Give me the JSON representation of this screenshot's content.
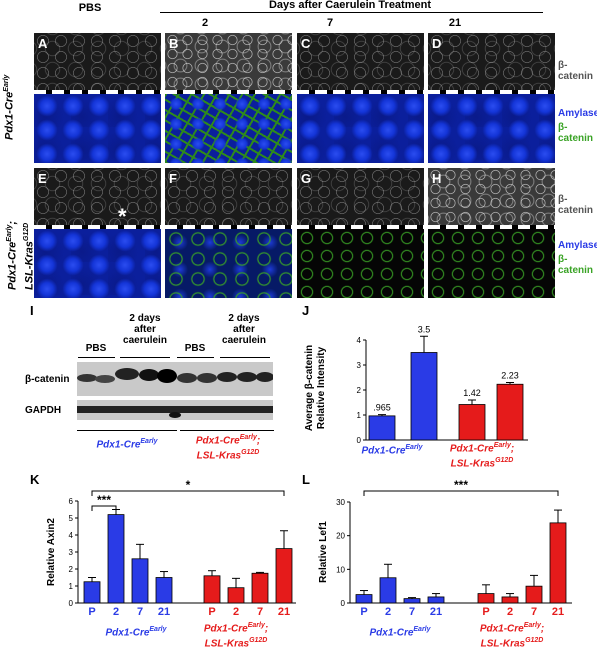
{
  "header": {
    "pbs": "PBS",
    "days_after": "Days after Caerulein Treatment",
    "day2": "2",
    "day7": "7",
    "day21": "21"
  },
  "micrograph": {
    "panels": [
      "A",
      "B",
      "C",
      "D",
      "E",
      "F",
      "G",
      "H"
    ],
    "row1_genotype": "Pdx1-Cre",
    "row1_sup": "Early",
    "row2_genotype_a": "Pdx1-Cre",
    "row2_sup_a": "Early",
    "row2_genotype_b": "LSL-Kras",
    "row2_sup_b": "G12D",
    "side_top": "β-catenin",
    "side_amylase": "Amylase",
    "side_bcat": "β-catenin",
    "asterisk": "*"
  },
  "western": {
    "letter": "I",
    "pbs1": "PBS",
    "after1": "2 days\nafter\ncaerulein",
    "pbs2": "PBS",
    "after2": "2 days\nafter\ncaerulein",
    "bcat": "β-catenin",
    "gapdh": "GAPDH",
    "geno1": "Pdx1-Cre",
    "geno1_sup": "Early",
    "geno2a": "Pdx1-Cre",
    "geno2a_sup": "Early",
    "geno2b": "LSL-Kras",
    "geno2b_sup": "G12D"
  },
  "chart_data": [
    {
      "panel": "J",
      "type": "bar",
      "ylabel": "Average β-catenin\nRelative Intensity",
      "ylim": [
        0,
        4
      ],
      "yticks": [
        0,
        1,
        2,
        3,
        4
      ],
      "values": [
        0.965,
        3.5,
        1.42,
        2.23
      ],
      "errors": [
        0.05,
        0.65,
        0.18,
        0.07
      ],
      "data_labels": [
        ".965",
        "3.5",
        "1.42",
        "2.23"
      ],
      "colors": [
        "#2a3be6",
        "#2a3be6",
        "#e51b1b",
        "#e51b1b"
      ],
      "group_labels": [
        "Pdx1-Cre",
        "Pdx1-Cre; LSL-Kras"
      ]
    },
    {
      "panel": "K",
      "type": "bar",
      "ylabel": "Relative Axin2",
      "ylim": [
        0,
        6
      ],
      "yticks": [
        0,
        1,
        2,
        3,
        4,
        5,
        6
      ],
      "categories": [
        "P",
        "2",
        "7",
        "21",
        "P",
        "2",
        "7",
        "21"
      ],
      "values": [
        1.25,
        5.2,
        2.6,
        1.5,
        1.6,
        0.9,
        1.75,
        3.2
      ],
      "errors": [
        0.25,
        0.3,
        0.85,
        0.35,
        0.3,
        0.55,
        0.05,
        1.05
      ],
      "colors": [
        "#2a3be6",
        "#2a3be6",
        "#2a3be6",
        "#2a3be6",
        "#e51b1b",
        "#e51b1b",
        "#e51b1b",
        "#e51b1b"
      ],
      "significance": [
        {
          "label": "***",
          "from": 0,
          "to": 1
        },
        {
          "label": "*",
          "from": 0,
          "to": 7
        }
      ]
    },
    {
      "panel": "L",
      "type": "bar",
      "ylabel": "Relative Lef1",
      "ylim": [
        0,
        30
      ],
      "yticks": [
        0,
        10,
        20,
        30
      ],
      "categories": [
        "P",
        "2",
        "7",
        "21",
        "P",
        "2",
        "7",
        "21"
      ],
      "values": [
        2.5,
        7.5,
        1.3,
        1.8,
        2.8,
        1.8,
        5.0,
        23.8
      ],
      "errors": [
        1.2,
        4.0,
        0.3,
        1.0,
        2.6,
        1.0,
        3.2,
        3.8
      ],
      "colors": [
        "#2a3be6",
        "#2a3be6",
        "#2a3be6",
        "#2a3be6",
        "#e51b1b",
        "#e51b1b",
        "#e51b1b",
        "#e51b1b"
      ],
      "significance": [
        {
          "label": "***",
          "from": 0,
          "to": 7
        }
      ]
    }
  ]
}
